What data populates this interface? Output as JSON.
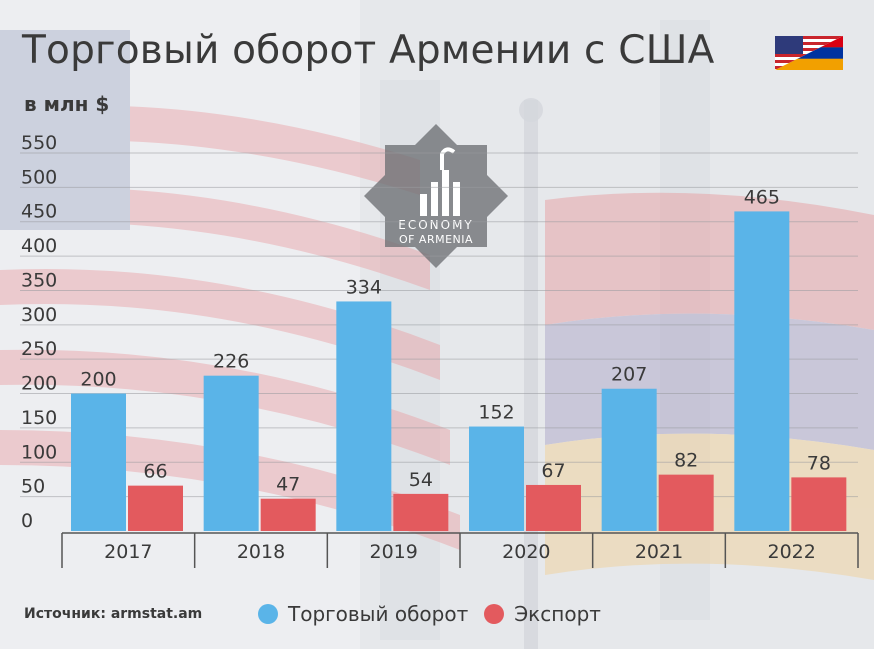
{
  "header": {
    "title": "Торговый оборот Армении с США",
    "subtitle": "в млн $"
  },
  "flag_icon": "usa-armenia-flag-icon",
  "logo": {
    "line1": "ECONOMY",
    "line2": "OF ARMENIA"
  },
  "footer": {
    "source": "Источник: armstat.am"
  },
  "colors": {
    "turnover": "#5ab4e8",
    "export": "#e35a5e",
    "text": "#3a3a3a"
  },
  "chart_data": {
    "type": "bar",
    "title": "Торговый оборот Армении с США",
    "ylabel": "в млн $",
    "categories": [
      "2017",
      "2018",
      "2019",
      "2020",
      "2021",
      "2022"
    ],
    "series": [
      {
        "name": "Торговый оборот",
        "values": [
          200,
          226,
          334,
          152,
          207,
          465
        ]
      },
      {
        "name": "Экспорт",
        "values": [
          66,
          47,
          54,
          67,
          82,
          78
        ]
      }
    ],
    "yticks": [
      "0",
      "50",
      "100",
      "150",
      "200",
      "250",
      "300",
      "350",
      "400",
      "450",
      "500",
      "550"
    ],
    "ylim": [
      0,
      550
    ],
    "grid": true,
    "legend": "bottom"
  }
}
